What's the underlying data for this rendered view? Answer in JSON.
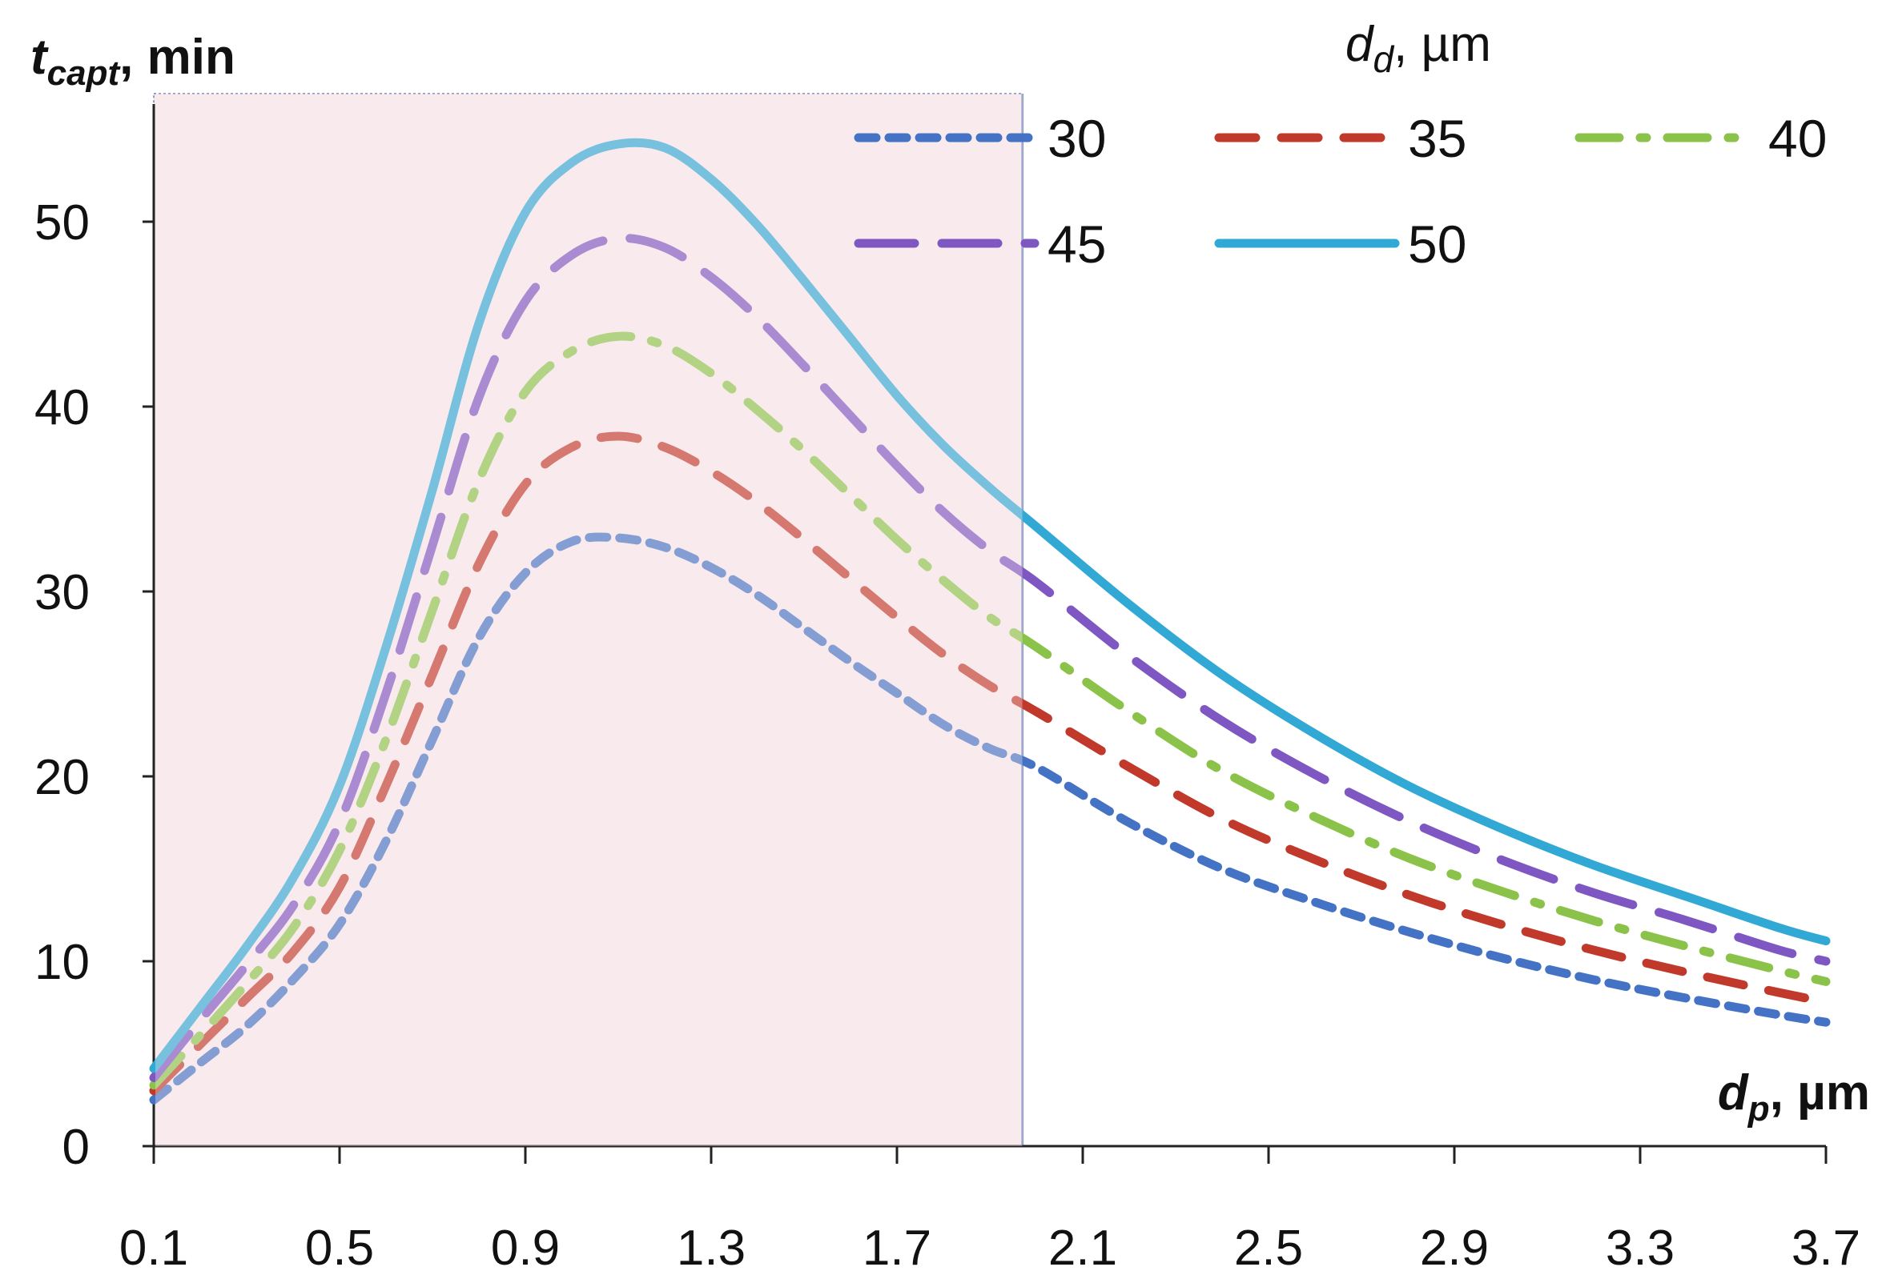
{
  "chart_data": {
    "type": "line",
    "ylabel_main": "t",
    "ylabel_sub": "capt",
    "ylabel_unit": ", min",
    "xlabel_main": "d",
    "xlabel_sub": "p",
    "xlabel_unit": ", µm",
    "legend_title_main": "d",
    "legend_title_sub": "d",
    "legend_title_unit": ", µm",
    "legend_placement": "top-right",
    "grid": false,
    "xlim": [
      0.1,
      3.7
    ],
    "ylim": [
      0,
      55
    ],
    "x_ticks": [
      "0.1",
      "0.5",
      "0.9",
      "1.3",
      "1.7",
      "2.1",
      "2.5",
      "2.9",
      "3.3",
      "3.7"
    ],
    "y_ticks": [
      "0",
      "10",
      "20",
      "30",
      "40",
      "50"
    ],
    "shaded_region": {
      "x_from": 0.1,
      "x_to": 1.97,
      "color": "#f8eaec"
    },
    "x": [
      0.1,
      0.2,
      0.3,
      0.4,
      0.5,
      0.6,
      0.7,
      0.8,
      0.9,
      1.0,
      1.1,
      1.2,
      1.3,
      1.4,
      1.5,
      1.6,
      1.7,
      1.8,
      1.9,
      2.0,
      2.2,
      2.4,
      2.6,
      2.8,
      3.0,
      3.2,
      3.4,
      3.6,
      3.7
    ],
    "series": [
      {
        "name": "30",
        "color": "#4472c4",
        "dash": "short",
        "values": [
          2.5,
          4.5,
          6.5,
          9.0,
          12.0,
          16.5,
          22.0,
          27.5,
          31.0,
          32.7,
          32.9,
          32.4,
          31.3,
          29.8,
          28.0,
          26.2,
          24.5,
          22.8,
          21.5,
          20.5,
          17.5,
          15.0,
          13.2,
          11.6,
          10.2,
          9.0,
          8.0,
          7.1,
          6.7
        ]
      },
      {
        "name": "35",
        "color": "#c0392b",
        "dash": "long",
        "values": [
          3.0,
          5.5,
          8.0,
          10.5,
          14.0,
          19.5,
          25.5,
          31.5,
          35.8,
          37.8,
          38.4,
          37.8,
          36.5,
          34.8,
          32.8,
          30.7,
          28.6,
          26.6,
          24.9,
          23.5,
          20.5,
          17.7,
          15.5,
          13.6,
          12.0,
          10.6,
          9.4,
          8.3,
          7.8
        ]
      },
      {
        "name": "40",
        "color": "#8bc34a",
        "dash": "dashdot",
        "values": [
          3.3,
          6.0,
          8.8,
          11.8,
          16.0,
          22.0,
          29.0,
          36.0,
          40.8,
          43.0,
          43.8,
          43.3,
          41.8,
          39.8,
          37.6,
          35.2,
          32.8,
          30.6,
          28.6,
          27.0,
          23.5,
          20.3,
          17.8,
          15.6,
          13.8,
          12.2,
          10.8,
          9.5,
          8.9
        ]
      },
      {
        "name": "45",
        "color": "#7e57c2",
        "dash": "longdash",
        "values": [
          3.7,
          6.8,
          9.8,
          13.0,
          17.5,
          24.5,
          32.5,
          40.5,
          45.7,
          48.2,
          49.1,
          48.6,
          47.0,
          44.8,
          42.2,
          39.5,
          36.8,
          34.3,
          32.2,
          30.5,
          26.5,
          23.0,
          20.1,
          17.6,
          15.5,
          13.7,
          12.2,
          10.6,
          10.0
        ]
      },
      {
        "name": "50",
        "color": "#31a9d4",
        "dash": "solid",
        "values": [
          4.2,
          7.5,
          10.8,
          14.5,
          19.5,
          27.0,
          35.5,
          44.5,
          50.5,
          53.2,
          54.2,
          54.0,
          52.3,
          49.8,
          46.8,
          43.7,
          40.6,
          37.9,
          35.6,
          33.5,
          29.3,
          25.5,
          22.3,
          19.5,
          17.2,
          15.2,
          13.5,
          11.8,
          11.1
        ]
      }
    ]
  }
}
